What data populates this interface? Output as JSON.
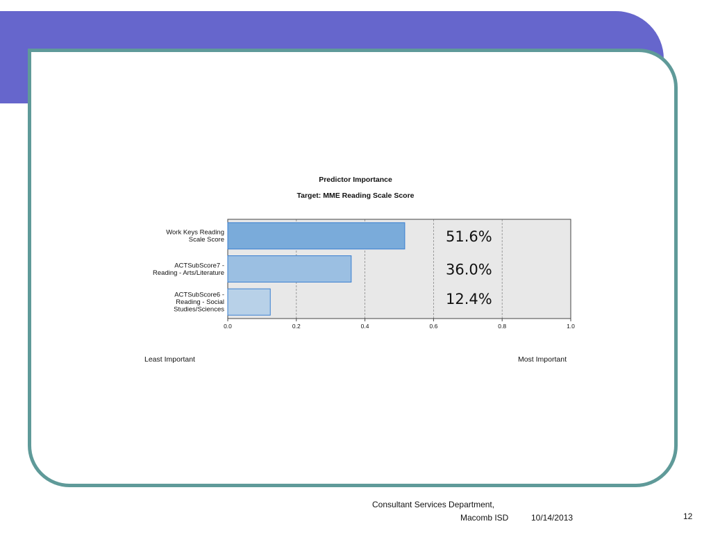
{
  "slide": {
    "footer_line1": "Consultant Services Department,",
    "footer_line2": "Macomb ISD",
    "date": "10/14/2013",
    "page_number": "12",
    "colors": {
      "header": "#6666cc",
      "frame": "#5f9a99"
    }
  },
  "chart_data": {
    "type": "bar",
    "orientation": "horizontal",
    "title": "Predictor Importance",
    "subtitle": "Target: MME Reading Scale Score",
    "categories": [
      [
        "Work Keys Reading",
        "Scale Score"
      ],
      [
        "ACTSubScore7 -",
        "Reading - Arts/Literature"
      ],
      [
        "ACTSubScore6 -",
        "Reading - Social",
        "Studies/Sciences"
      ]
    ],
    "values": [
      0.516,
      0.36,
      0.124
    ],
    "value_labels": [
      "51.6%",
      "36.0%",
      "12.4%"
    ],
    "bar_colors": [
      "#7aabda",
      "#9bbfe2",
      "#b8d1e8"
    ],
    "xlim": [
      0.0,
      1.0
    ],
    "xticks": [
      "0.0",
      "0.2",
      "0.4",
      "0.6",
      "0.8",
      "1.0"
    ],
    "grid": true,
    "axis_end_labels": [
      "Least Important",
      "Most Important"
    ]
  }
}
